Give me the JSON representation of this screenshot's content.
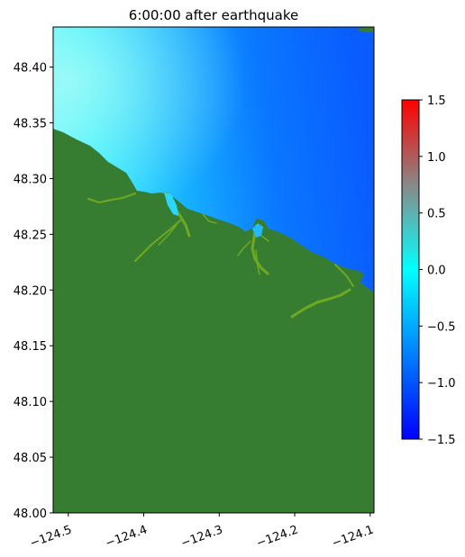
{
  "title": "6:00:00 after earthquake",
  "axes": {
    "x_ticks": [
      "−124.5",
      "−124.4",
      "−124.3",
      "−124.2",
      "−124.1"
    ],
    "x_tick_values": [
      -124.5,
      -124.4,
      -124.3,
      -124.2,
      -124.1
    ],
    "x_range": [
      -124.52,
      -124.095
    ],
    "y_ticks": [
      "48.40",
      "48.35",
      "48.30",
      "48.25",
      "48.20",
      "48.15",
      "48.10",
      "48.05",
      "48.00"
    ],
    "y_tick_values": [
      48.4,
      48.35,
      48.3,
      48.25,
      48.2,
      48.15,
      48.1,
      48.05,
      48.0
    ],
    "y_range": [
      48.0,
      48.436
    ]
  },
  "colorbar": {
    "ticks": [
      "1.5",
      "1.0",
      "0.5",
      "0.0",
      "−0.5",
      "−1.0",
      "−1.5"
    ],
    "tick_values": [
      1.5,
      1.0,
      0.5,
      0.0,
      -0.5,
      -1.0,
      -1.5
    ],
    "range": [
      -1.5,
      1.5
    ],
    "colors": [
      "#0000ff",
      "#00ffff",
      "#888888",
      "#ff0000"
    ]
  },
  "colors": {
    "land": "#367d31",
    "river": "#6fa822",
    "water_light": "#7ff7f7",
    "water_mid": "#1aaaff",
    "water_deep": "#0a55ff"
  }
}
